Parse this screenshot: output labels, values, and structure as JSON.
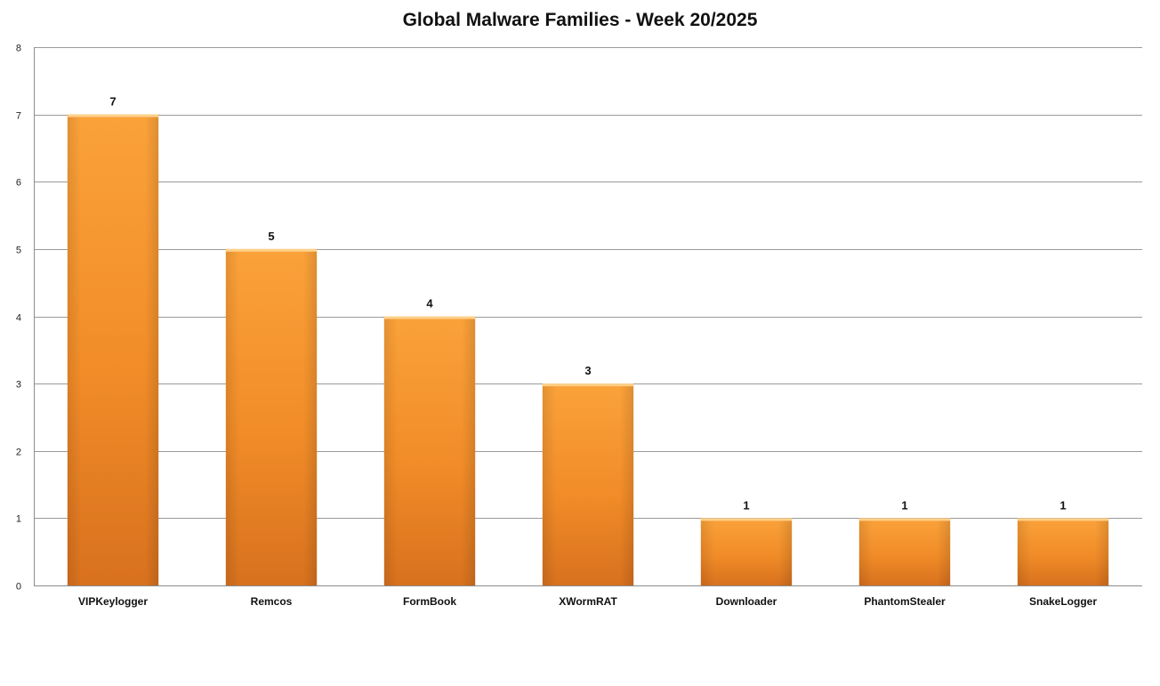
{
  "chart_data": {
    "type": "bar",
    "title": "Global Malware Families - Week 20/2025",
    "xlabel": "",
    "ylabel": "",
    "categories": [
      "VIPKeylogger",
      "Remcos",
      "FormBook",
      "XWormRAT",
      "Downloader",
      "PhantomStealer",
      "SnakeLogger"
    ],
    "values": [
      7,
      5,
      4,
      3,
      1,
      1,
      1
    ],
    "ylim": [
      0,
      8
    ],
    "yticks": [
      0,
      1,
      2,
      3,
      4,
      5,
      6,
      7,
      8
    ],
    "grid": true,
    "legend": "none",
    "data_labels": true,
    "colors": {
      "bar_top": "#fba23a",
      "bar_mid": "#f18c28",
      "bar_bottom": "#d8711e",
      "bar_cap": "#ffd089",
      "grid": "#9a9a9a",
      "axis": "#8c8c8c"
    }
  }
}
